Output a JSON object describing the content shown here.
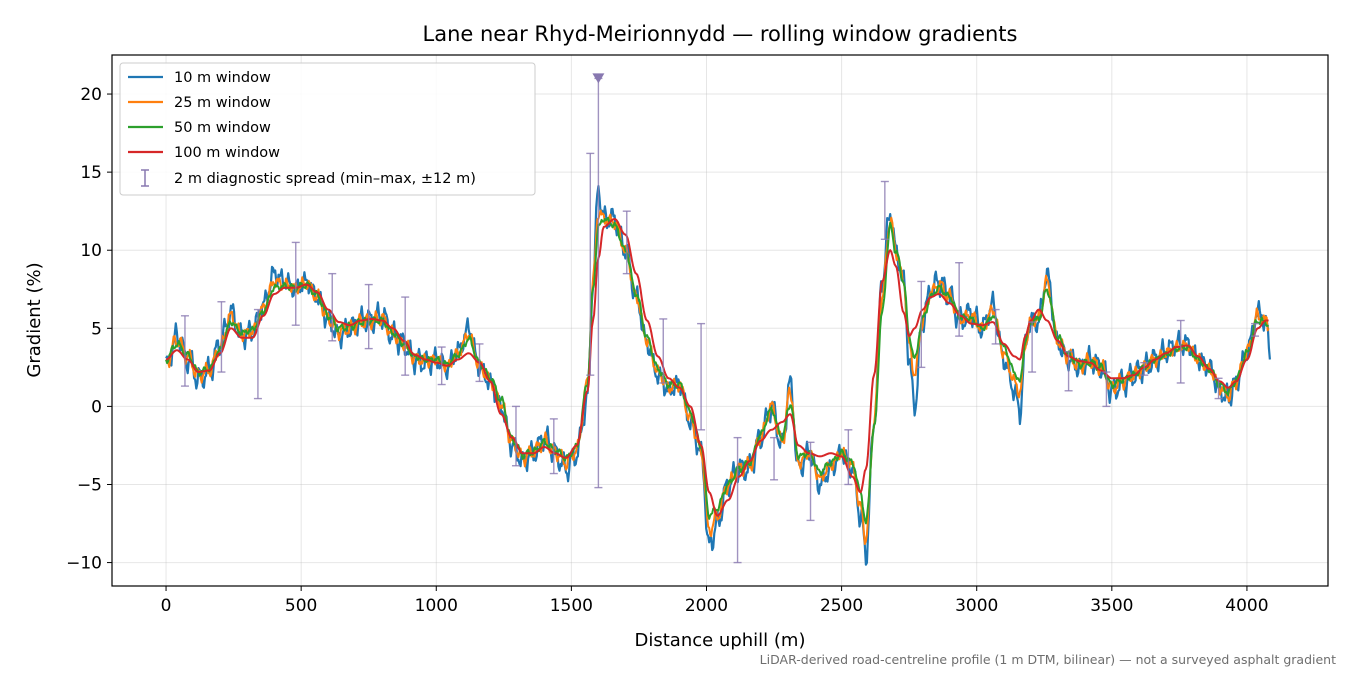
{
  "chart_data": {
    "type": "line",
    "title": "Lane near Rhyd-Meirionnydd — rolling window gradients",
    "xlabel": "Distance uphill (m)",
    "ylabel": "Gradient (%)",
    "caption": "LiDAR-derived road-centreline profile (1 m DTM, bilinear) — not a surveyed asphalt gradient",
    "xlim": [
      -200,
      4300
    ],
    "ylim": [
      -11.5,
      22.5
    ],
    "xticks": [
      0,
      500,
      1000,
      1500,
      2000,
      2500,
      3000,
      3500,
      4000
    ],
    "yticks": [
      -10,
      -5,
      0,
      5,
      10,
      15,
      20
    ],
    "grid": true,
    "legend_position": "top-left",
    "series": [
      {
        "name": "10 m window",
        "color": "#1f77b4",
        "amp": 1.0,
        "x": [
          0,
          40,
          80,
          120,
          160,
          200,
          240,
          280,
          320,
          360,
          400,
          440,
          480,
          520,
          560,
          600,
          640,
          680,
          720,
          760,
          800,
          840,
          880,
          920,
          960,
          1000,
          1040,
          1080,
          1120,
          1160,
          1200,
          1240,
          1280,
          1320,
          1360,
          1400,
          1440,
          1480,
          1520,
          1560,
          1580,
          1600,
          1620,
          1660,
          1700,
          1740,
          1780,
          1820,
          1860,
          1900,
          1940,
          1980,
          2010,
          2040,
          2080,
          2120,
          2160,
          2200,
          2240,
          2280,
          2310,
          2340,
          2380,
          2420,
          2460,
          2500,
          2540,
          2570,
          2590,
          2620,
          2650,
          2680,
          2700,
          2730,
          2750,
          2770,
          2800,
          2830,
          2860,
          2900,
          2940,
          2980,
          3020,
          3060,
          3100,
          3140,
          3160,
          3180,
          3200,
          3230,
          3260,
          3300,
          3340,
          3380,
          3420,
          3460,
          3500,
          3540,
          3580,
          3620,
          3660,
          3700,
          3740,
          3780,
          3820,
          3860,
          3900,
          3930,
          3960,
          4000,
          4040,
          4070,
          4085
        ],
        "y": [
          2.5,
          4.5,
          3.0,
          1.8,
          2.2,
          4.0,
          6.0,
          4.5,
          4.8,
          6.5,
          8.5,
          8.0,
          7.5,
          8.0,
          7.0,
          5.5,
          4.5,
          5.0,
          5.5,
          5.5,
          5.8,
          4.5,
          4.0,
          3.0,
          2.8,
          3.0,
          2.5,
          3.5,
          5.0,
          2.5,
          1.5,
          0.0,
          -2.5,
          -3.5,
          -3.0,
          -2.0,
          -3.0,
          -4.0,
          -3.0,
          0.5,
          8.0,
          14.0,
          12.0,
          12.0,
          10.0,
          7.0,
          4.0,
          2.0,
          1.0,
          1.5,
          -1.0,
          -3.0,
          -9.0,
          -7.5,
          -5.0,
          -4.0,
          -4.0,
          -2.0,
          0.0,
          -2.5,
          1.5,
          -4.0,
          -3.0,
          -5.0,
          -4.0,
          -3.0,
          -4.0,
          -7.0,
          -9.5,
          -1.0,
          8.0,
          12.5,
          10.0,
          8.0,
          3.0,
          0.0,
          5.5,
          7.5,
          8.0,
          7.0,
          5.5,
          6.0,
          5.0,
          6.5,
          3.0,
          1.0,
          -0.5,
          4.0,
          5.5,
          5.5,
          8.5,
          4.0,
          3.0,
          2.5,
          3.0,
          2.5,
          1.0,
          1.5,
          2.0,
          2.5,
          3.0,
          3.5,
          4.0,
          4.0,
          3.0,
          2.5,
          1.0,
          0.5,
          1.5,
          3.5,
          6.0,
          5.5,
          3.0
        ]
      },
      {
        "name": "25 m window",
        "color": "#ff7f0e",
        "amp": 0.6,
        "x": [
          0,
          40,
          80,
          120,
          160,
          200,
          240,
          280,
          320,
          360,
          400,
          440,
          480,
          520,
          560,
          600,
          640,
          680,
          720,
          760,
          800,
          840,
          880,
          920,
          960,
          1000,
          1040,
          1080,
          1120,
          1160,
          1200,
          1240,
          1280,
          1320,
          1360,
          1400,
          1440,
          1480,
          1520,
          1560,
          1580,
          1600,
          1620,
          1660,
          1700,
          1740,
          1780,
          1820,
          1860,
          1900,
          1940,
          1980,
          2010,
          2040,
          2080,
          2120,
          2160,
          2200,
          2240,
          2280,
          2310,
          2340,
          2380,
          2420,
          2460,
          2500,
          2540,
          2570,
          2590,
          2620,
          2650,
          2680,
          2700,
          2730,
          2750,
          2770,
          2800,
          2830,
          2860,
          2900,
          2940,
          2980,
          3020,
          3060,
          3100,
          3140,
          3160,
          3180,
          3200,
          3230,
          3260,
          3300,
          3340,
          3380,
          3420,
          3460,
          3500,
          3540,
          3580,
          3620,
          3660,
          3700,
          3740,
          3780,
          3820,
          3860,
          3900,
          3930,
          3960,
          4000,
          4040,
          4070,
          4080
        ],
        "y": [
          2.8,
          4.3,
          3.2,
          2.0,
          2.3,
          3.8,
          5.8,
          4.6,
          4.8,
          6.3,
          8.0,
          7.8,
          7.6,
          7.9,
          7.0,
          5.6,
          4.8,
          5.0,
          5.4,
          5.5,
          5.6,
          4.6,
          4.0,
          3.1,
          2.9,
          3.0,
          2.6,
          3.4,
          4.6,
          2.6,
          1.6,
          0.2,
          -2.3,
          -3.3,
          -2.9,
          -2.2,
          -2.9,
          -3.6,
          -2.8,
          1.5,
          8.0,
          12.5,
          12.0,
          11.8,
          10.0,
          7.0,
          4.2,
          2.2,
          1.2,
          1.4,
          -0.8,
          -2.8,
          -8.0,
          -7.0,
          -5.0,
          -4.0,
          -3.8,
          -2.0,
          0.0,
          -2.3,
          1.0,
          -3.6,
          -3.0,
          -4.6,
          -3.8,
          -3.0,
          -3.8,
          -6.5,
          -8.5,
          -1.0,
          7.0,
          12.0,
          10.0,
          8.0,
          4.0,
          2.0,
          5.5,
          7.3,
          7.8,
          7.0,
          5.6,
          5.8,
          5.0,
          6.2,
          3.4,
          1.6,
          0.8,
          4.0,
          5.4,
          5.6,
          8.0,
          4.2,
          3.2,
          2.6,
          2.9,
          2.5,
          1.2,
          1.6,
          2.0,
          2.5,
          3.0,
          3.4,
          3.8,
          3.9,
          3.0,
          2.4,
          1.2,
          0.7,
          1.6,
          3.5,
          5.8,
          5.5,
          5.0
        ]
      },
      {
        "name": "50 m window",
        "color": "#2ca02c",
        "amp": 0.3,
        "x": [
          0,
          40,
          80,
          120,
          160,
          200,
          240,
          280,
          320,
          360,
          400,
          440,
          480,
          520,
          560,
          600,
          640,
          680,
          720,
          760,
          800,
          840,
          880,
          920,
          960,
          1000,
          1040,
          1080,
          1120,
          1160,
          1200,
          1240,
          1280,
          1320,
          1360,
          1400,
          1440,
          1480,
          1520,
          1560,
          1580,
          1600,
          1620,
          1660,
          1700,
          1740,
          1780,
          1820,
          1860,
          1900,
          1940,
          1980,
          2010,
          2040,
          2080,
          2120,
          2160,
          2200,
          2240,
          2280,
          2310,
          2340,
          2380,
          2420,
          2460,
          2500,
          2540,
          2570,
          2590,
          2620,
          2650,
          2680,
          2700,
          2730,
          2750,
          2770,
          2800,
          2830,
          2860,
          2900,
          2940,
          2980,
          3020,
          3060,
          3100,
          3140,
          3160,
          3180,
          3200,
          3230,
          3260,
          3300,
          3340,
          3380,
          3420,
          3460,
          3500,
          3540,
          3580,
          3620,
          3660,
          3700,
          3740,
          3780,
          3820,
          3860,
          3900,
          3930,
          3960,
          4000,
          4040,
          4070,
          4080
        ],
        "y": [
          3.0,
          4.0,
          3.3,
          2.2,
          2.4,
          3.6,
          5.4,
          4.7,
          4.9,
          6.1,
          7.6,
          7.7,
          7.6,
          7.8,
          7.1,
          5.8,
          5.0,
          5.1,
          5.4,
          5.5,
          5.5,
          4.7,
          4.0,
          3.2,
          3.0,
          3.0,
          2.7,
          3.3,
          4.3,
          2.8,
          1.8,
          0.4,
          -2.1,
          -3.1,
          -2.9,
          -2.3,
          -2.8,
          -3.3,
          -2.6,
          1.5,
          7.5,
          11.5,
          12.0,
          11.6,
          10.0,
          7.2,
          4.4,
          2.4,
          1.4,
          1.4,
          -0.4,
          -2.5,
          -7.0,
          -6.5,
          -5.0,
          -4.0,
          -3.6,
          -1.8,
          -0.2,
          -2.0,
          0.2,
          -3.2,
          -3.0,
          -4.2,
          -3.6,
          -3.0,
          -3.6,
          -5.5,
          -7.5,
          -1.5,
          6.0,
          11.5,
          10.0,
          8.0,
          4.5,
          3.0,
          5.6,
          7.0,
          7.6,
          7.0,
          5.7,
          5.6,
          5.0,
          5.8,
          3.8,
          2.2,
          1.5,
          4.2,
          5.4,
          5.6,
          7.5,
          4.4,
          3.3,
          2.7,
          2.8,
          2.5,
          1.4,
          1.7,
          2.0,
          2.5,
          3.0,
          3.3,
          3.7,
          3.8,
          3.0,
          2.4,
          1.4,
          0.9,
          1.7,
          3.4,
          5.5,
          5.4,
          5.2
        ]
      },
      {
        "name": "100 m window",
        "color": "#d62728",
        "amp": 0.0,
        "x": [
          0,
          40,
          80,
          120,
          160,
          200,
          240,
          280,
          320,
          360,
          400,
          440,
          480,
          520,
          560,
          600,
          640,
          680,
          720,
          760,
          800,
          840,
          880,
          920,
          960,
          1000,
          1040,
          1080,
          1120,
          1160,
          1200,
          1240,
          1280,
          1320,
          1360,
          1400,
          1440,
          1480,
          1520,
          1560,
          1580,
          1600,
          1620,
          1660,
          1700,
          1740,
          1780,
          1820,
          1860,
          1900,
          1940,
          1980,
          2010,
          2040,
          2080,
          2120,
          2160,
          2200,
          2240,
          2280,
          2310,
          2340,
          2380,
          2420,
          2460,
          2500,
          2540,
          2570,
          2590,
          2620,
          2650,
          2680,
          2700,
          2730,
          2750,
          2770,
          2800,
          2830,
          2860,
          2900,
          2940,
          2980,
          3020,
          3060,
          3100,
          3140,
          3160,
          3180,
          3200,
          3230,
          3260,
          3300,
          3340,
          3380,
          3420,
          3460,
          3500,
          3540,
          3580,
          3620,
          3660,
          3700,
          3740,
          3780,
          3820,
          3860,
          3900,
          3930,
          3960,
          4000,
          4040,
          4070,
          4080
        ],
        "y": [
          3.0,
          3.6,
          3.0,
          2.2,
          2.3,
          3.4,
          5.0,
          4.4,
          4.4,
          5.8,
          7.2,
          7.6,
          7.6,
          7.8,
          7.3,
          6.2,
          5.4,
          5.2,
          5.5,
          5.6,
          5.5,
          5.0,
          4.2,
          3.3,
          3.0,
          2.8,
          2.6,
          3.0,
          3.4,
          2.8,
          1.6,
          -0.5,
          -2.0,
          -3.0,
          -3.0,
          -2.6,
          -3.0,
          -3.3,
          -2.5,
          1.0,
          5.5,
          9.5,
          11.5,
          12.0,
          11.0,
          8.5,
          5.5,
          3.2,
          1.8,
          1.2,
          0.0,
          -2.5,
          -5.5,
          -7.0,
          -6.0,
          -4.5,
          -3.5,
          -2.2,
          -1.5,
          -1.0,
          -0.5,
          -2.5,
          -3.0,
          -3.2,
          -3.0,
          -3.2,
          -4.5,
          -5.5,
          -4.0,
          2.0,
          8.0,
          10.0,
          9.0,
          6.0,
          4.5,
          5.0,
          6.2,
          7.0,
          7.2,
          6.6,
          5.8,
          5.3,
          5.2,
          5.4,
          4.0,
          3.2,
          3.0,
          4.5,
          5.5,
          6.2,
          5.5,
          4.2,
          3.2,
          2.9,
          2.8,
          2.3,
          1.8,
          1.8,
          2.0,
          2.5,
          3.0,
          3.4,
          3.8,
          3.9,
          3.2,
          2.4,
          1.6,
          1.2,
          1.6,
          3.0,
          5.0,
          5.5,
          5.5
        ]
      }
    ],
    "spread": {
      "name": "2 m diagnostic spread (min–max, ±12 m)",
      "color": "#8878b0",
      "bars": [
        {
          "x": 70,
          "lo": 1.3,
          "hi": 5.8
        },
        {
          "x": 205,
          "lo": 2.2,
          "hi": 6.7
        },
        {
          "x": 340,
          "lo": 0.5,
          "hi": 6.2
        },
        {
          "x": 480,
          "lo": 5.2,
          "hi": 10.5
        },
        {
          "x": 615,
          "lo": 4.2,
          "hi": 8.5
        },
        {
          "x": 750,
          "lo": 3.7,
          "hi": 7.8
        },
        {
          "x": 885,
          "lo": 2.0,
          "hi": 7.0
        },
        {
          "x": 1020,
          "lo": 1.4,
          "hi": 3.8
        },
        {
          "x": 1160,
          "lo": 1.6,
          "hi": 4.0
        },
        {
          "x": 1295,
          "lo": -3.8,
          "hi": 0.0
        },
        {
          "x": 1435,
          "lo": -4.3,
          "hi": -0.8
        },
        {
          "x": 1570,
          "lo": 2.0,
          "hi": 16.2
        },
        {
          "x": 1600,
          "lo": -5.2,
          "hi": 21.0
        },
        {
          "x": 1705,
          "lo": 8.5,
          "hi": 12.5
        },
        {
          "x": 1840,
          "lo": 1.5,
          "hi": 5.6
        },
        {
          "x": 1980,
          "lo": -1.5,
          "hi": 5.3
        },
        {
          "x": 2115,
          "lo": -10.0,
          "hi": -2.0
        },
        {
          "x": 2250,
          "lo": -4.7,
          "hi": -2.0
        },
        {
          "x": 2385,
          "lo": -7.3,
          "hi": -2.3
        },
        {
          "x": 2525,
          "lo": -5.0,
          "hi": -1.5
        },
        {
          "x": 2660,
          "lo": 10.7,
          "hi": 14.4
        },
        {
          "x": 2795,
          "lo": 2.5,
          "hi": 8.0
        },
        {
          "x": 2935,
          "lo": 4.5,
          "hi": 9.2
        },
        {
          "x": 3070,
          "lo": 4.0,
          "hi": 6.2
        },
        {
          "x": 3205,
          "lo": 2.2,
          "hi": 5.4
        },
        {
          "x": 3340,
          "lo": 1.0,
          "hi": 3.5
        },
        {
          "x": 3480,
          "lo": 0.0,
          "hi": 2.2
        },
        {
          "x": 3620,
          "lo": 2.0,
          "hi": 2.8
        },
        {
          "x": 3755,
          "lo": 1.5,
          "hi": 5.5
        },
        {
          "x": 3895,
          "lo": 0.5,
          "hi": 1.8
        },
        {
          "x": 4030,
          "lo": 4.5,
          "hi": 5.3
        }
      ],
      "marker": {
        "x": 1600,
        "y": 21.0
      }
    }
  }
}
